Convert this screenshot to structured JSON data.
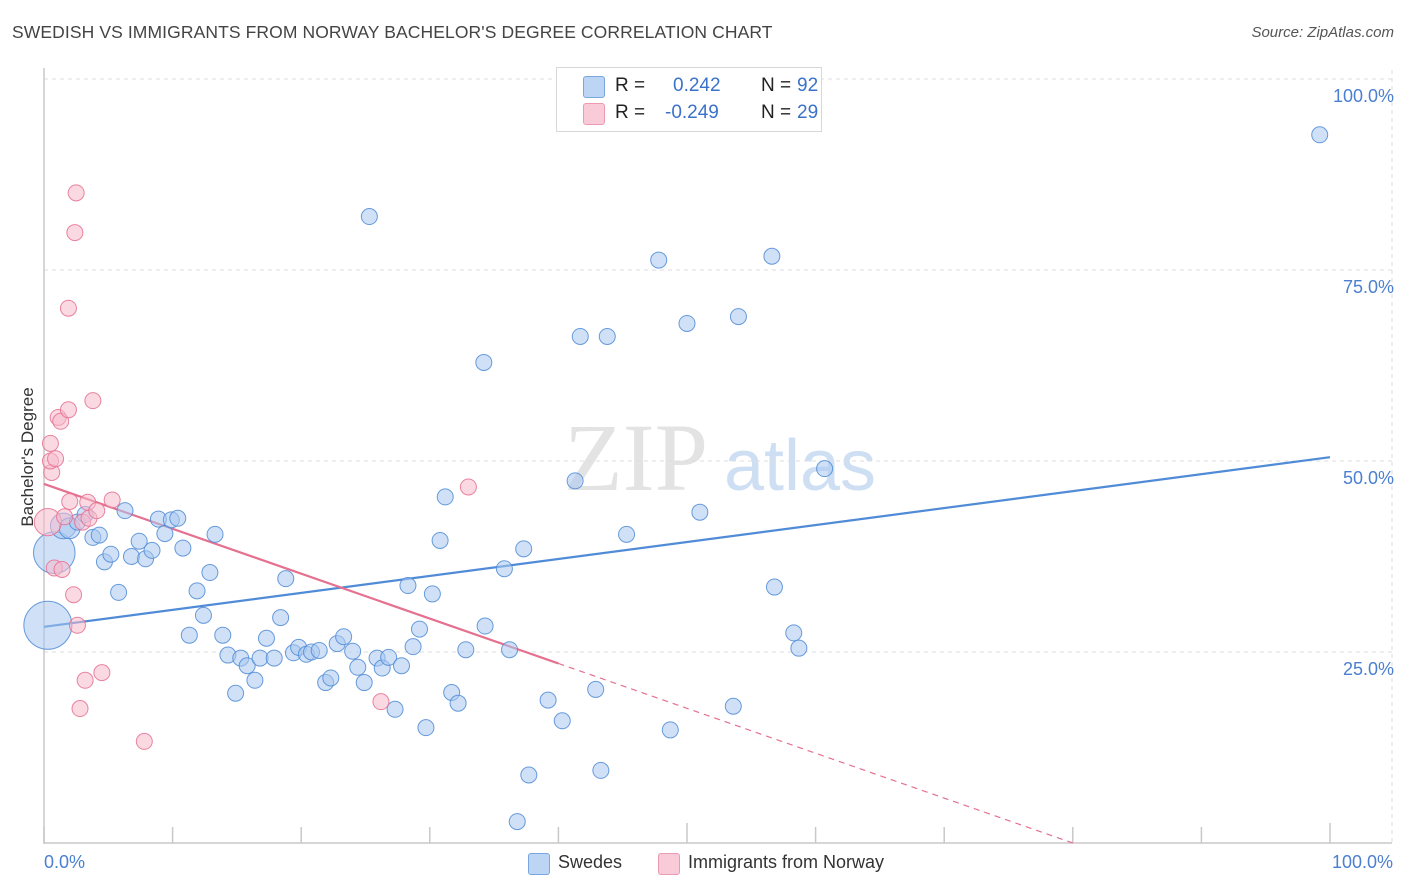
{
  "header": {
    "title": "SWEDISH VS IMMIGRANTS FROM NORWAY BACHELOR'S DEGREE CORRELATION CHART",
    "source": "Source: ZipAtlas.com"
  },
  "watermark": {
    "zip": "ZIP",
    "atlas": "atlas"
  },
  "legend": {
    "rows": [
      {
        "r_label": "R =",
        "r_value": "0.242",
        "n_label": "N =",
        "n_value": "92",
        "color": "#a9c8f0"
      },
      {
        "r_label": "R =",
        "r_value": "-0.249",
        "n_label": "N =",
        "n_value": "29",
        "color": "#f6b9cc"
      }
    ]
  },
  "bottom_legend": {
    "series": [
      {
        "label": "Swedes",
        "color": "#a9c8f0"
      },
      {
        "label": "Immigrants from Norway",
        "color": "#f6b9cc"
      }
    ]
  },
  "chart_data": {
    "type": "scatter",
    "title": "SWEDISH VS IMMIGRANTS FROM NORWAY BACHELOR'S DEGREE CORRELATION CHART",
    "xlabel": "",
    "ylabel": "Bachelor's Degree",
    "xlim": [
      0,
      100
    ],
    "ylim": [
      0,
      100
    ],
    "x_tick_labels": {
      "min": "0.0%",
      "max": "100.0%"
    },
    "y_tick_labels": [
      "100.0%",
      "75.0%",
      "50.0%",
      "25.0%"
    ],
    "y_tick_values": [
      100,
      75,
      50,
      25
    ],
    "grid": true,
    "series": [
      {
        "name": "Swedes",
        "color": "#4f8bd6",
        "fill": "#a9c8f0",
        "trend": {
          "x": [
            0,
            100
          ],
          "y": [
            28.3,
            50.5
          ],
          "dashed_extension": false
        },
        "points": [
          [
            0.3,
            28.5,
            3
          ],
          [
            0.8,
            38.0,
            2.6
          ],
          [
            1.5,
            41.5,
            1.6
          ],
          [
            2.0,
            41.2,
            1.3
          ],
          [
            2.6,
            42.0,
            1
          ],
          [
            3.2,
            43.0,
            1
          ],
          [
            3.8,
            40.0,
            1
          ],
          [
            4.3,
            40.3,
            1
          ],
          [
            4.7,
            36.8,
            1
          ],
          [
            5.2,
            37.8,
            1
          ],
          [
            5.8,
            32.8,
            1
          ],
          [
            6.3,
            43.5,
            1
          ],
          [
            6.8,
            37.5,
            1
          ],
          [
            7.4,
            39.5,
            1
          ],
          [
            7.9,
            37.2,
            1
          ],
          [
            8.4,
            38.3,
            1
          ],
          [
            8.9,
            42.4,
            1
          ],
          [
            9.4,
            40.5,
            1
          ],
          [
            9.9,
            42.3,
            1
          ],
          [
            10.4,
            42.5,
            1
          ],
          [
            10.8,
            38.6,
            1
          ],
          [
            11.3,
            27.2,
            1
          ],
          [
            11.9,
            33.0,
            1
          ],
          [
            12.4,
            29.8,
            1
          ],
          [
            12.9,
            35.4,
            1
          ],
          [
            13.3,
            40.4,
            1
          ],
          [
            13.9,
            27.2,
            1
          ],
          [
            14.3,
            24.6,
            1
          ],
          [
            14.9,
            19.6,
            1
          ],
          [
            15.3,
            24.2,
            1
          ],
          [
            15.8,
            23.2,
            1
          ],
          [
            16.4,
            21.3,
            1
          ],
          [
            16.8,
            24.2,
            1
          ],
          [
            17.3,
            26.8,
            1
          ],
          [
            17.9,
            24.2,
            1
          ],
          [
            18.4,
            29.5,
            1
          ],
          [
            18.8,
            34.6,
            1
          ],
          [
            19.4,
            24.9,
            1
          ],
          [
            19.8,
            25.6,
            1
          ],
          [
            20.4,
            24.7,
            1
          ],
          [
            20.8,
            25.0,
            1
          ],
          [
            21.4,
            25.2,
            1
          ],
          [
            21.9,
            21.0,
            1
          ],
          [
            22.3,
            21.6,
            1
          ],
          [
            22.8,
            26.1,
            1
          ],
          [
            23.3,
            27.0,
            1
          ],
          [
            24.0,
            25.1,
            1
          ],
          [
            24.4,
            23.0,
            1
          ],
          [
            24.9,
            21.0,
            1
          ],
          [
            25.3,
            82.0,
            1
          ],
          [
            25.9,
            24.2,
            1
          ],
          [
            26.3,
            22.9,
            1
          ],
          [
            26.8,
            24.3,
            1
          ],
          [
            27.3,
            17.5,
            1
          ],
          [
            27.8,
            23.2,
            1
          ],
          [
            28.3,
            33.7,
            1
          ],
          [
            28.7,
            25.7,
            1
          ],
          [
            29.2,
            28.0,
            1
          ],
          [
            29.7,
            15.1,
            1
          ],
          [
            30.2,
            32.6,
            1
          ],
          [
            30.8,
            39.6,
            1
          ],
          [
            31.2,
            45.3,
            1
          ],
          [
            31.7,
            19.7,
            1
          ],
          [
            32.2,
            18.3,
            1
          ],
          [
            32.8,
            25.3,
            1
          ],
          [
            34.3,
            28.4,
            1
          ],
          [
            34.2,
            62.9,
            1
          ],
          [
            35.8,
            35.9,
            1
          ],
          [
            36.2,
            25.3,
            1
          ],
          [
            37.3,
            38.5,
            1
          ],
          [
            37.7,
            8.9,
            1
          ],
          [
            36.8,
            2.8,
            1
          ],
          [
            39.2,
            18.7,
            1
          ],
          [
            40.3,
            16.0,
            1
          ],
          [
            41.3,
            47.4,
            1
          ],
          [
            41.7,
            66.3,
            1
          ],
          [
            42.9,
            20.1,
            1
          ],
          [
            43.3,
            9.5,
            1
          ],
          [
            43.8,
            66.3,
            1
          ],
          [
            45.3,
            40.4,
            1
          ],
          [
            47.8,
            76.3,
            1
          ],
          [
            48.7,
            14.8,
            1
          ],
          [
            50.0,
            68.0,
            1
          ],
          [
            51.0,
            43.3,
            1
          ],
          [
            53.6,
            17.9,
            1
          ],
          [
            54.0,
            68.9,
            1
          ],
          [
            56.8,
            33.5,
            1
          ],
          [
            56.6,
            76.8,
            1
          ],
          [
            58.3,
            27.5,
            1
          ],
          [
            58.7,
            25.5,
            1
          ],
          [
            60.7,
            49.0,
            1
          ],
          [
            99.2,
            92.7,
            1
          ]
        ]
      },
      {
        "name": "Immigrants from Norway",
        "color": "#e5708f",
        "fill": "#f6b9cc",
        "trend": {
          "x": [
            0,
            40
          ],
          "y": [
            47.0,
            23.5
          ],
          "dashed_extension": true,
          "extension_to_x": 80
        },
        "points": [
          [
            0.3,
            42.0,
            1.7
          ],
          [
            0.5,
            52.3,
            1
          ],
          [
            0.6,
            48.5,
            1
          ],
          [
            0.5,
            50.0,
            1
          ],
          [
            0.9,
            50.3,
            1
          ],
          [
            0.8,
            36.0,
            1
          ],
          [
            1.1,
            55.7,
            1
          ],
          [
            1.3,
            55.2,
            1
          ],
          [
            1.4,
            35.8,
            1
          ],
          [
            1.6,
            42.7,
            1
          ],
          [
            1.9,
            56.7,
            1
          ],
          [
            1.9,
            70.0,
            1
          ],
          [
            2.0,
            44.7,
            1
          ],
          [
            2.3,
            32.5,
            1
          ],
          [
            2.4,
            79.9,
            1
          ],
          [
            2.5,
            85.1,
            1
          ],
          [
            2.6,
            28.5,
            1
          ],
          [
            2.8,
            17.6,
            1
          ],
          [
            3.0,
            42.0,
            1
          ],
          [
            3.2,
            21.3,
            1
          ],
          [
            3.4,
            44.6,
            1
          ],
          [
            3.5,
            42.5,
            1
          ],
          [
            3.8,
            57.9,
            1
          ],
          [
            4.1,
            43.5,
            1
          ],
          [
            4.5,
            22.3,
            1
          ],
          [
            5.3,
            44.9,
            1
          ],
          [
            7.8,
            13.3,
            1
          ],
          [
            33.0,
            46.6,
            1
          ],
          [
            26.2,
            18.5,
            1
          ]
        ]
      }
    ]
  }
}
